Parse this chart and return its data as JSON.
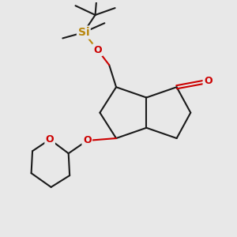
{
  "bg_color": "#e8e8e8",
  "bond_color": "#1a1a1a",
  "bond_width": 1.5,
  "si_color": "#b8860b",
  "o_color": "#cc0000",
  "font_size_atom": 9,
  "font_size_si": 10,
  "fig_w": 3.0,
  "fig_h": 3.0,
  "dpi": 100,
  "xlim": [
    0,
    10
  ],
  "ylim": [
    0,
    10
  ]
}
